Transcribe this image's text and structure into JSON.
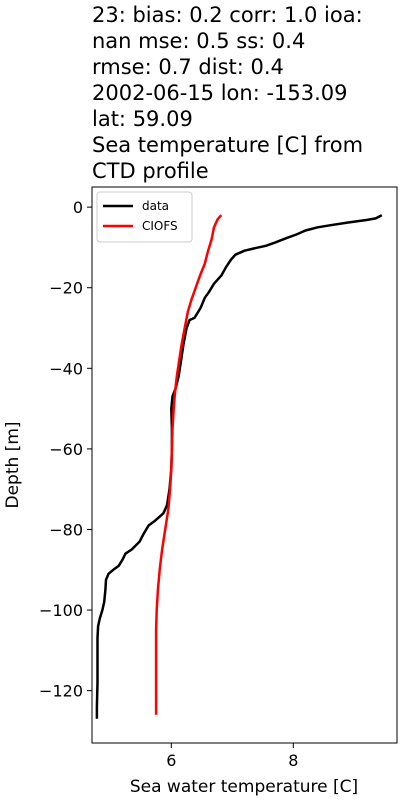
{
  "chart_data": {
    "type": "line",
    "title_lines": [
      "23: bias: 0.2  corr: 1.0  ioa:",
      "nan  mse: 0.5  ss: 0.4",
      "rmse: 0.7  dist: 0.4",
      "2002-06-15 lon: -153.09",
      "lat: 59.09",
      "Sea temperature [C] from",
      "CTD profile"
    ],
    "xlabel": "Sea water temperature [C]",
    "ylabel": "Depth [m]",
    "xlim": [
      4.7,
      9.7
    ],
    "ylim": [
      -133,
      5
    ],
    "xticks": [
      6,
      8
    ],
    "yticks": [
      0,
      -20,
      -40,
      -60,
      -80,
      -100,
      -120
    ],
    "xtick_labels": [
      "6",
      "8"
    ],
    "ytick_labels": [
      "0",
      "−20",
      "−40",
      "−60",
      "−80",
      "−100",
      "−120"
    ],
    "grid": false,
    "legend_position": "top-left",
    "series": [
      {
        "name": "data",
        "color": "#000000",
        "points": [
          [
            9.45,
            -2
          ],
          [
            9.35,
            -2.8
          ],
          [
            9.2,
            -3.2
          ],
          [
            8.9,
            -3.8
          ],
          [
            8.6,
            -4.5
          ],
          [
            8.4,
            -5
          ],
          [
            8.2,
            -5.8
          ],
          [
            8.05,
            -6.8
          ],
          [
            7.9,
            -7.6
          ],
          [
            7.7,
            -8.8
          ],
          [
            7.55,
            -9.6
          ],
          [
            7.4,
            -10.1
          ],
          [
            7.2,
            -10.8
          ],
          [
            7.05,
            -11.8
          ],
          [
            6.98,
            -13
          ],
          [
            6.9,
            -14.8
          ],
          [
            6.82,
            -17
          ],
          [
            6.7,
            -19
          ],
          [
            6.62,
            -21
          ],
          [
            6.55,
            -22.5
          ],
          [
            6.48,
            -25
          ],
          [
            6.38,
            -27.5
          ],
          [
            6.3,
            -28
          ],
          [
            6.25,
            -30
          ],
          [
            6.2,
            -34
          ],
          [
            6.16,
            -38
          ],
          [
            6.12,
            -42
          ],
          [
            6.07,
            -45
          ],
          [
            6.02,
            -47
          ],
          [
            6.0,
            -50
          ],
          [
            6.01,
            -55
          ],
          [
            6.01,
            -60
          ],
          [
            6.0,
            -65
          ],
          [
            5.97,
            -70
          ],
          [
            5.93,
            -74
          ],
          [
            5.87,
            -76
          ],
          [
            5.72,
            -78
          ],
          [
            5.63,
            -79
          ],
          [
            5.55,
            -81
          ],
          [
            5.48,
            -83
          ],
          [
            5.35,
            -85
          ],
          [
            5.25,
            -86
          ],
          [
            5.2,
            -87.5
          ],
          [
            5.14,
            -89
          ],
          [
            5.05,
            -90
          ],
          [
            4.97,
            -91
          ],
          [
            4.93,
            -92.5
          ],
          [
            4.92,
            -95
          ],
          [
            4.9,
            -98
          ],
          [
            4.87,
            -100
          ],
          [
            4.83,
            -102
          ],
          [
            4.8,
            -104
          ],
          [
            4.79,
            -107
          ],
          [
            4.79,
            -112
          ],
          [
            4.79,
            -118
          ],
          [
            4.78,
            -124
          ],
          [
            4.78,
            -127
          ]
        ]
      },
      {
        "name": "CIOFS",
        "color": "#ff0000",
        "points": [
          [
            6.82,
            -2
          ],
          [
            6.76,
            -3
          ],
          [
            6.7,
            -5
          ],
          [
            6.66,
            -8
          ],
          [
            6.6,
            -11
          ],
          [
            6.55,
            -14
          ],
          [
            6.47,
            -17
          ],
          [
            6.4,
            -20
          ],
          [
            6.33,
            -23
          ],
          [
            6.27,
            -26
          ],
          [
            6.22,
            -30
          ],
          [
            6.17,
            -34
          ],
          [
            6.13,
            -38
          ],
          [
            6.09,
            -42
          ],
          [
            6.06,
            -46
          ],
          [
            6.04,
            -50
          ],
          [
            6.02,
            -55
          ],
          [
            6.01,
            -60
          ],
          [
            6.0,
            -65
          ],
          [
            5.98,
            -70
          ],
          [
            5.95,
            -75
          ],
          [
            5.9,
            -80
          ],
          [
            5.85,
            -85
          ],
          [
            5.81,
            -90
          ],
          [
            5.78,
            -95
          ],
          [
            5.76,
            -100
          ],
          [
            5.75,
            -105
          ],
          [
            5.75,
            -110
          ],
          [
            5.75,
            -115
          ],
          [
            5.75,
            -120
          ],
          [
            5.75,
            -126
          ]
        ]
      }
    ]
  }
}
